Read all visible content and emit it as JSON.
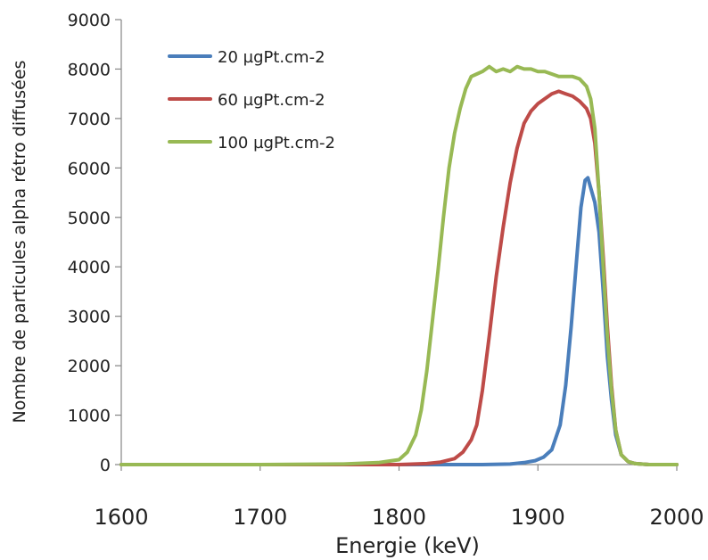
{
  "chart_data": {
    "type": "line",
    "title": "",
    "xlabel": "Energie (keV)",
    "ylabel": "Nombre de particules alpha rétro diffusées",
    "xlim": [
      1600,
      2000
    ],
    "ylim": [
      0,
      9000
    ],
    "x_ticks": [
      "1600",
      "1700",
      "1800",
      "1900",
      "2000"
    ],
    "y_ticks": [
      "0",
      "1000",
      "2000",
      "3000",
      "4000",
      "5000",
      "6000",
      "7000",
      "8000",
      "9000"
    ],
    "grid": false,
    "legend_position": "top-left",
    "series": [
      {
        "name": "20 µgPt.cm-2",
        "color": "#4a7ebb",
        "x": [
          1600,
          1700,
          1800,
          1860,
          1880,
          1890,
          1898,
          1904,
          1910,
          1916,
          1920,
          1924,
          1928,
          1931,
          1934,
          1936,
          1938,
          1941,
          1944,
          1947,
          1950,
          1953,
          1956,
          1960,
          1965,
          1970,
          1980,
          2000
        ],
        "y": [
          0,
          0,
          0,
          0,
          10,
          40,
          80,
          150,
          300,
          800,
          1600,
          2800,
          4200,
          5200,
          5750,
          5800,
          5600,
          5300,
          4700,
          3500,
          2200,
          1300,
          600,
          200,
          60,
          20,
          0,
          0
        ]
      },
      {
        "name": "60 µgPt.cm-2",
        "color": "#be4b48",
        "x": [
          1600,
          1750,
          1800,
          1820,
          1830,
          1840,
          1846,
          1852,
          1856,
          1860,
          1865,
          1870,
          1875,
          1880,
          1885,
          1890,
          1895,
          1900,
          1905,
          1910,
          1915,
          1920,
          1925,
          1930,
          1935,
          1938,
          1941,
          1944,
          1947,
          1950,
          1953,
          1956,
          1960,
          1965,
          1970,
          1980,
          2000
        ],
        "y": [
          0,
          0,
          0,
          20,
          50,
          120,
          250,
          500,
          800,
          1500,
          2600,
          3800,
          4800,
          5700,
          6400,
          6900,
          7150,
          7300,
          7400,
          7500,
          7550,
          7500,
          7450,
          7350,
          7200,
          7000,
          6500,
          5500,
          4200,
          2800,
          1600,
          700,
          200,
          60,
          20,
          0,
          0
        ]
      },
      {
        "name": "100 µgPt.cm-2",
        "color": "#98b954",
        "x": [
          1600,
          1700,
          1760,
          1785,
          1800,
          1806,
          1812,
          1816,
          1820,
          1824,
          1828,
          1832,
          1836,
          1840,
          1844,
          1848,
          1852,
          1856,
          1860,
          1865,
          1870,
          1875,
          1880,
          1885,
          1890,
          1895,
          1900,
          1905,
          1910,
          1915,
          1920,
          1925,
          1930,
          1935,
          1938,
          1941,
          1944,
          1947,
          1950,
          1953,
          1956,
          1960,
          1965,
          1970,
          1980,
          2000
        ],
        "y": [
          0,
          0,
          10,
          40,
          100,
          250,
          600,
          1100,
          1900,
          2900,
          3900,
          5000,
          6000,
          6700,
          7200,
          7600,
          7850,
          7900,
          7950,
          8050,
          7950,
          8000,
          7950,
          8050,
          8000,
          8000,
          7950,
          7950,
          7900,
          7850,
          7850,
          7850,
          7800,
          7650,
          7400,
          6800,
          5500,
          4000,
          2600,
          1500,
          700,
          200,
          60,
          20,
          0,
          0
        ]
      }
    ]
  }
}
